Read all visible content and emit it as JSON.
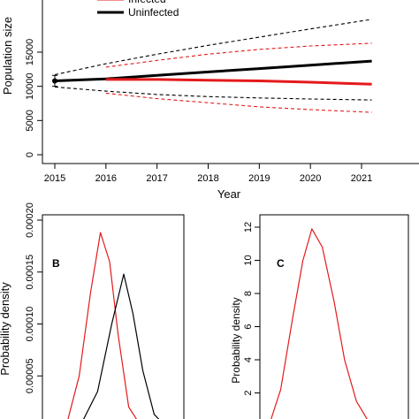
{
  "chart_data": [
    {
      "type": "line",
      "title": "",
      "xlabel": "Year",
      "ylabel": "Population size",
      "xlim": [
        2015,
        2021.2
      ],
      "ylim": [
        -800,
        20000
      ],
      "x_ticks": [
        2015,
        2016,
        2017,
        2018,
        2019,
        2020,
        2021
      ],
      "x_tick_labels": [
        "2015",
        "2016",
        "2017",
        "2018",
        "2019",
        "2020",
        "2021"
      ],
      "y_ticks": [
        0,
        5000,
        10000,
        15000
      ],
      "y_tick_labels": [
        "0",
        "5000",
        "10000",
        "15000"
      ],
      "legend": {
        "placement": "top-left",
        "entries": [
          {
            "label": "Infected",
            "color": "#e41a1c"
          },
          {
            "label": "Uninfected",
            "color": "#000000"
          }
        ]
      },
      "start_point": {
        "x": 2015,
        "y": 10800,
        "error_low": 10000,
        "error_high": 11600
      },
      "series": [
        {
          "name": "Uninfected",
          "color": "#000000",
          "style": "solid",
          "x": [
            2015,
            2016,
            2017,
            2018,
            2019,
            2020,
            2021.2
          ],
          "y": [
            10800,
            11100,
            11600,
            12100,
            12600,
            13100,
            13700
          ]
        },
        {
          "name": "",
          "color": "#000000",
          "style": "dashed",
          "x": [
            2015,
            2016,
            2017,
            2018,
            2019,
            2020,
            2021.2
          ],
          "y": [
            11700,
            13300,
            14700,
            16000,
            17200,
            18400,
            19800
          ]
        },
        {
          "name": "",
          "color": "#000000",
          "style": "dashed",
          "x": [
            2015,
            2016,
            2017,
            2018,
            2019,
            2020,
            2021.2
          ],
          "y": [
            9900,
            9300,
            8800,
            8500,
            8300,
            8150,
            8000
          ]
        },
        {
          "name": "Infected",
          "color": "#e41a1c",
          "style": "solid",
          "x": [
            2016,
            2017,
            2018,
            2019,
            2020,
            2021.2
          ],
          "y": [
            11000,
            11000,
            10900,
            10800,
            10600,
            10300
          ]
        },
        {
          "name": "",
          "color": "#e41a1c",
          "style": "dashed",
          "x": [
            2016,
            2017,
            2018,
            2019,
            2020,
            2021.2
          ],
          "y": [
            12800,
            13800,
            14700,
            15400,
            15900,
            16300
          ]
        },
        {
          "name": "",
          "color": "#e41a1c",
          "style": "dashed",
          "x": [
            2016,
            2017,
            2018,
            2019,
            2020,
            2021.2
          ],
          "y": [
            9000,
            8200,
            7600,
            7000,
            6600,
            6200
          ]
        }
      ]
    },
    {
      "type": "line",
      "panel_label": "B",
      "xlabel": "",
      "ylabel": "Probability density",
      "xlim": [
        0,
        20000
      ],
      "ylim": [
        0,
        0.0002
      ],
      "y_ticks": [
        5e-05,
        0.0001,
        0.00015,
        0.0002
      ],
      "y_tick_labels": [
        "0.00005",
        "0.00010",
        "0.00015",
        "0.00020"
      ],
      "series": [
        {
          "name": "",
          "color": "#e41a1c",
          "x": [
            1900,
            3600,
            5200,
            6800,
            8200,
            9500,
            10700,
            12200,
            14100
          ],
          "y": [
            0,
            8e-06,
            5e-05,
            0.00013,
            0.000188,
            0.00016,
            9e-05,
            2e-05,
            0
          ]
        },
        {
          "name": "",
          "color": "#000000",
          "x": [
            5200,
            7800,
            9800,
            11500,
            12800,
            14200,
            15800,
            17600
          ],
          "y": [
            0,
            3.5e-05,
            0.0001,
            0.000148,
            0.00011,
            5.5e-05,
            1.3e-05,
            0
          ]
        }
      ]
    },
    {
      "type": "line",
      "panel_label": "C",
      "xlabel": "",
      "ylabel": "Probability density",
      "xlim": [
        0,
        1
      ],
      "ylim": [
        0,
        12.6
      ],
      "y_ticks": [
        2,
        4,
        6,
        8,
        10,
        12
      ],
      "y_tick_labels": [
        "2",
        "4",
        "6",
        "8",
        "10",
        "12"
      ],
      "series": [
        {
          "name": "",
          "color": "#e41a1c",
          "x": [
            0.06,
            0.14,
            0.22,
            0.29,
            0.35,
            0.42,
            0.5,
            0.57,
            0.65,
            0.75
          ],
          "y": [
            0,
            2.2,
            6.5,
            10.0,
            11.9,
            10.8,
            7.5,
            4.0,
            1.5,
            0
          ]
        }
      ]
    }
  ]
}
